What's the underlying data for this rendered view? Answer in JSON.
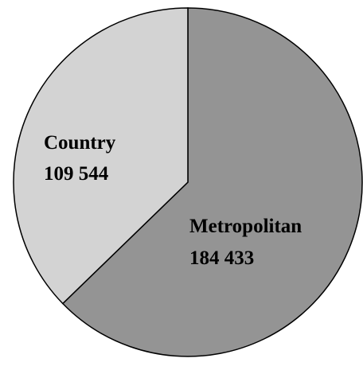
{
  "chart_data": {
    "type": "pie",
    "title": "",
    "slices": [
      {
        "label": "Metropolitan",
        "value_text": "184 433",
        "value": 184433,
        "color": "#949494"
      },
      {
        "label": "Country",
        "value_text": "109 544",
        "value": 109544,
        "color": "#d3d3d3"
      }
    ],
    "legend": "none",
    "labels_inside_slices": true
  }
}
